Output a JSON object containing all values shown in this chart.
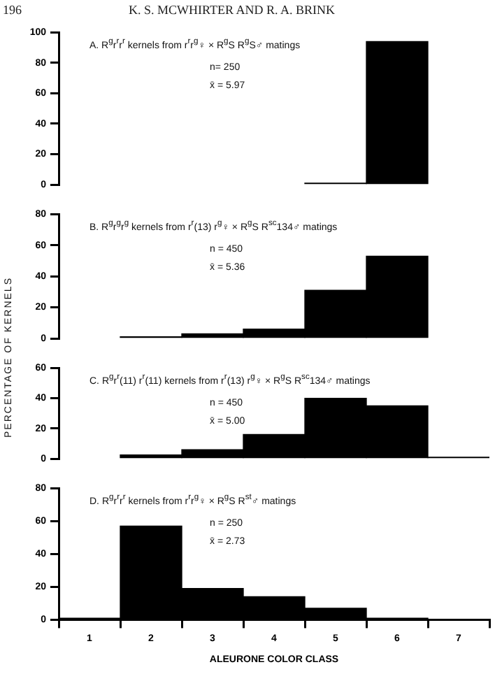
{
  "chart_data": [
    {
      "type": "other",
      "annotations": [
        "196",
        "K. S. MCWHIRTER AND R. A. BRINK"
      ]
    },
    {
      "type": "bar",
      "title": "A. R$^{g}$r$^{r}$r$^{r}$ kernels from r$^{r}$r$^{g}$♀ × R$^{g}$S R$^{g}$S♂ matings",
      "categories": [
        "1",
        "2",
        "3",
        "4",
        "5",
        "6",
        "7"
      ],
      "values": [
        null,
        null,
        null,
        null,
        1,
        94,
        null
      ],
      "color": "#000000",
      "ylim": [
        0,
        100
      ],
      "yticks": [
        0,
        20,
        40,
        60,
        80,
        100
      ],
      "tick_labels": "y",
      "annotations": [
        "n= 250",
        "x̄ = 5.97"
      ]
    },
    {
      "type": "bar",
      "title": "B. R$^{g}$r$^{g}$r$^{g}$ kernels from r$^{r}$(13) r$^{g}$♀ × R$^{g}$S R$^{sc}$134♂ matings",
      "ylabel": "PERCENTAGE OF KERNELS",
      "categories": [
        "1",
        "2",
        "3",
        "4",
        "5",
        "6",
        "7"
      ],
      "values": [
        null,
        1,
        3,
        6,
        31,
        53,
        null
      ],
      "color": "#000000",
      "ylim": [
        0,
        80
      ],
      "yticks": [
        0,
        20,
        40,
        60,
        80
      ],
      "tick_labels": "y",
      "annotations": [
        "n = 450",
        "x̄ = 5.36"
      ]
    },
    {
      "type": "bar",
      "title": "C. R$^{g}$r$^{r}$(11) r$^{r}$(11) kernels from r$^{r}$(13) r$^{g}$♀ × R$^{g}$S R$^{sc}$134♂ matings",
      "categories": [
        "1",
        "2",
        "3",
        "4",
        "5",
        "6",
        "7"
      ],
      "values": [
        null,
        2.5,
        6,
        16,
        40,
        35,
        1
      ],
      "color": "#000000",
      "ylim": [
        0,
        60
      ],
      "yticks": [
        0,
        20,
        40,
        60
      ],
      "tick_labels": "y",
      "annotations": [
        "n = 450",
        "x̄ = 5.00"
      ]
    },
    {
      "type": "bar",
      "title": "D. R$^{g}$r$^{r}$r$^{r}$ kernels from r$^{r}$r$^{g}$♀ × R$^{g}$S R$^{st}$♂ matings",
      "xlabel": "ALEURONE COLOR CLASS",
      "categories": [
        "1",
        "2",
        "3",
        "4",
        "5",
        "6",
        "7"
      ],
      "values": [
        1,
        57,
        19,
        14,
        7,
        1,
        null
      ],
      "color": "#000000",
      "ylim": [
        0,
        80
      ],
      "yticks": [
        0,
        20,
        40,
        60,
        80
      ],
      "annotations": [
        "n = 250",
        "x̄ = 2.73"
      ]
    }
  ]
}
